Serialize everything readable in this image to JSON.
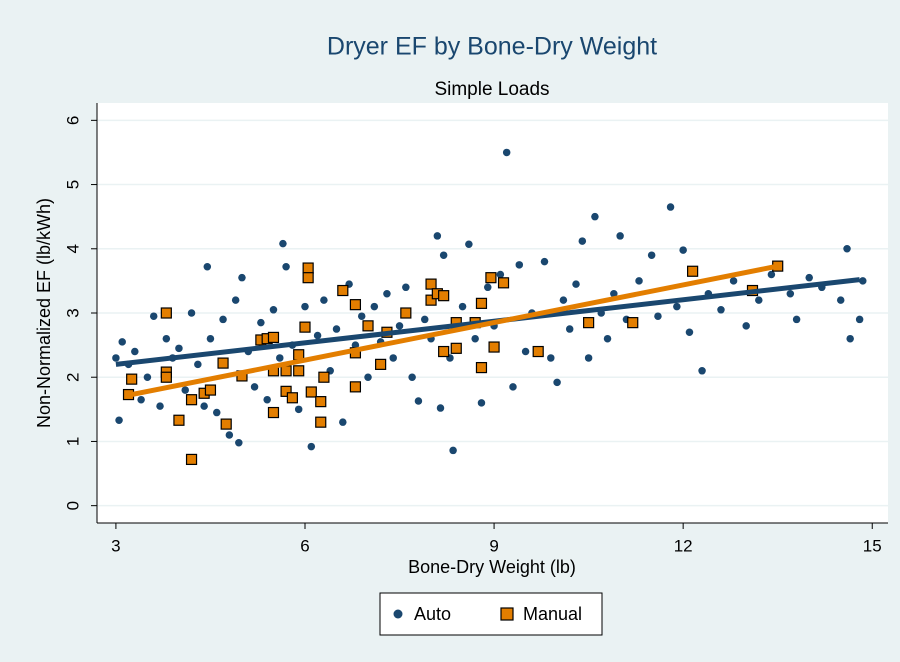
{
  "chart_data": {
    "type": "scatter",
    "title": "Dryer EF by Bone-Dry Weight",
    "subtitle": "Simple Loads",
    "xlabel": "Bone-Dry Weight (lb)",
    "ylabel": "Non-Normalized EF (lb/kWh)",
    "xlim": [
      2.7,
      15.25
    ],
    "ylim": [
      -0.27,
      6.27
    ],
    "xticks": [
      3,
      6,
      9,
      12,
      15
    ],
    "yticks": [
      0,
      1,
      2,
      3,
      4,
      5,
      6
    ],
    "grid": true,
    "legend": "bottom",
    "series": [
      {
        "name": "Auto",
        "color": "#1a476f",
        "marker": "circle",
        "x": [
          3.0,
          3.05,
          3.1,
          3.2,
          3.3,
          3.4,
          3.5,
          3.6,
          3.7,
          3.8,
          3.9,
          4.0,
          4.1,
          4.2,
          4.3,
          4.4,
          4.45,
          4.5,
          4.6,
          4.7,
          4.8,
          4.9,
          4.95,
          5.0,
          5.1,
          5.2,
          5.3,
          5.4,
          5.5,
          5.6,
          5.65,
          5.7,
          5.8,
          5.9,
          6.0,
          6.1,
          6.2,
          6.3,
          6.4,
          6.5,
          6.6,
          6.7,
          6.8,
          6.9,
          7.0,
          7.1,
          7.2,
          7.3,
          7.4,
          7.5,
          7.6,
          7.7,
          7.8,
          7.9,
          8.0,
          8.1,
          8.15,
          8.2,
          8.3,
          8.35,
          8.5,
          8.6,
          8.7,
          8.8,
          8.9,
          9.0,
          9.1,
          9.2,
          9.3,
          9.4,
          9.5,
          9.6,
          9.8,
          9.9,
          10.0,
          10.1,
          10.2,
          10.3,
          10.4,
          10.5,
          10.6,
          10.7,
          10.8,
          10.9,
          11.0,
          11.1,
          11.3,
          11.5,
          11.6,
          11.8,
          11.9,
          12.0,
          12.1,
          12.3,
          12.4,
          12.6,
          12.8,
          13.0,
          13.2,
          13.4,
          13.7,
          13.8,
          14.0,
          14.2,
          14.5,
          14.6,
          14.65,
          14.8,
          14.85
        ],
        "values": [
          2.3,
          1.33,
          2.55,
          2.2,
          2.4,
          1.65,
          2.0,
          2.95,
          1.55,
          2.6,
          2.3,
          2.45,
          1.8,
          3.0,
          2.2,
          1.55,
          3.72,
          2.6,
          1.45,
          2.9,
          1.1,
          3.2,
          0.98,
          3.55,
          2.4,
          1.85,
          2.85,
          1.65,
          3.05,
          2.3,
          4.08,
          3.72,
          2.5,
          1.5,
          3.1,
          0.92,
          2.65,
          3.2,
          2.1,
          2.75,
          1.3,
          3.45,
          2.5,
          2.95,
          2.0,
          3.1,
          2.55,
          3.3,
          2.3,
          2.8,
          3.4,
          2.0,
          1.63,
          2.9,
          2.6,
          4.2,
          1.52,
          3.9,
          2.3,
          0.86,
          3.1,
          4.07,
          2.6,
          1.6,
          3.4,
          2.8,
          3.6,
          5.5,
          1.85,
          3.75,
          2.4,
          3.0,
          3.8,
          2.3,
          1.92,
          3.2,
          2.75,
          3.45,
          4.12,
          2.3,
          4.5,
          3.0,
          2.6,
          3.3,
          4.2,
          2.9,
          3.5,
          3.9,
          2.95,
          4.65,
          3.1,
          3.98,
          2.7,
          2.1,
          3.3,
          3.05,
          3.5,
          2.8,
          3.2,
          3.6,
          3.3,
          2.9,
          3.55,
          3.4,
          3.2,
          4.0,
          2.6,
          2.9,
          3.5
        ],
        "fit_x": [
          3.0,
          14.8
        ],
        "fit_values": [
          2.2,
          3.52
        ]
      },
      {
        "name": "Manual",
        "color": "#e37e00",
        "marker": "square",
        "x": [
          3.2,
          3.25,
          3.8,
          3.8,
          3.8,
          4.0,
          4.2,
          4.2,
          4.4,
          4.5,
          4.7,
          4.75,
          5.0,
          5.3,
          5.4,
          5.5,
          5.5,
          5.5,
          5.7,
          5.7,
          5.8,
          5.9,
          5.9,
          6.0,
          6.05,
          6.05,
          6.1,
          6.25,
          6.25,
          6.3,
          6.6,
          6.8,
          6.8,
          6.8,
          7.0,
          7.2,
          7.3,
          7.6,
          8.0,
          8.0,
          8.1,
          8.2,
          8.2,
          8.4,
          8.4,
          8.7,
          8.8,
          8.8,
          8.95,
          9.0,
          9.15,
          9.7,
          10.5,
          11.2,
          12.15,
          13.1,
          13.5
        ],
        "values": [
          1.73,
          1.97,
          3.0,
          2.08,
          2.0,
          1.33,
          0.72,
          1.65,
          1.75,
          1.8,
          2.22,
          1.27,
          2.02,
          2.58,
          2.6,
          2.62,
          1.45,
          2.1,
          2.1,
          1.78,
          1.68,
          2.1,
          2.35,
          2.78,
          3.7,
          3.55,
          1.77,
          1.62,
          1.3,
          2.0,
          3.35,
          3.13,
          1.85,
          2.38,
          2.8,
          2.2,
          2.7,
          3.0,
          3.45,
          3.2,
          3.3,
          3.27,
          2.4,
          2.45,
          2.85,
          2.85,
          3.15,
          2.15,
          3.55,
          2.47,
          3.47,
          2.4,
          2.85,
          2.85,
          3.65,
          3.35,
          3.73
        ],
        "fit_x": [
          3.2,
          13.5
        ],
        "fit_values": [
          1.72,
          3.73
        ]
      }
    ]
  }
}
